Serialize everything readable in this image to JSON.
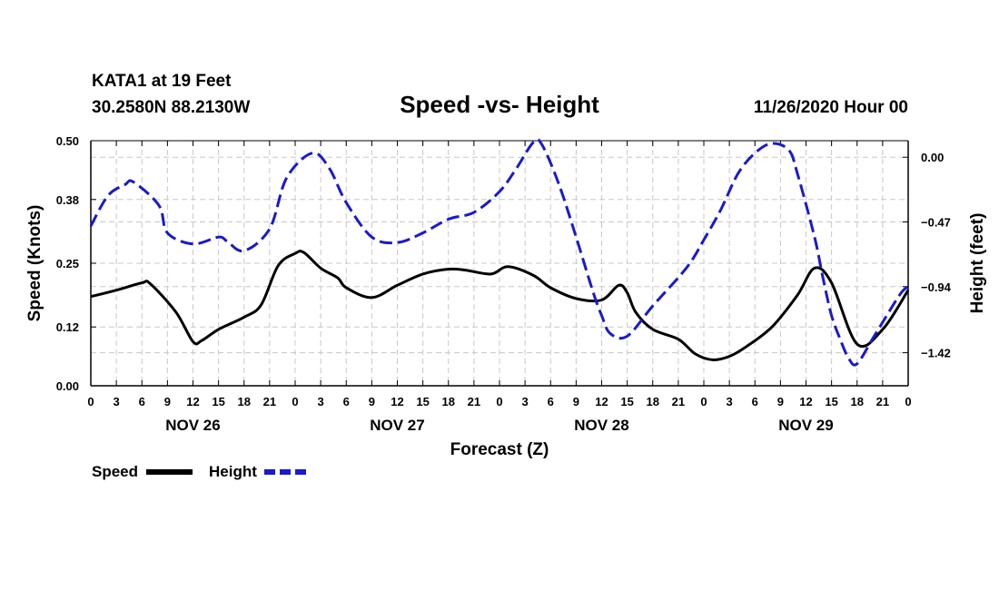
{
  "header": {
    "station": "KATA1 at 19 Feet",
    "coords": "30.2580N 88.2130W",
    "title": "Speed -vs- Height",
    "datetime": "11/26/2020 Hour 00"
  },
  "chart_data": {
    "type": "line",
    "title": "Speed -vs- Height",
    "xlabel": "Forecast (Z)",
    "ylabel": "Speed (Knots)",
    "y2label": "Height (feet)",
    "xlim": [
      0,
      96
    ],
    "ylim": [
      0,
      0.5
    ],
    "y2lim": [
      -1.66,
      0.12
    ],
    "x_tick_labels": [
      "0",
      "3",
      "6",
      "9",
      "12",
      "15",
      "18",
      "21",
      "0",
      "3",
      "6",
      "9",
      "12",
      "15",
      "18",
      "21",
      "0",
      "3",
      "6",
      "9",
      "12",
      "15",
      "18",
      "21",
      "0",
      "3",
      "6",
      "9",
      "12",
      "15",
      "18",
      "21",
      "0"
    ],
    "day_labels": [
      {
        "label": "NOV 26",
        "x": 12
      },
      {
        "label": "NOV 27",
        "x": 36
      },
      {
        "label": "NOV 28",
        "x": 60
      },
      {
        "label": "NOV 29",
        "x": 84
      }
    ],
    "y_ticks": [
      0.0,
      0.12,
      0.25,
      0.38,
      0.5
    ],
    "y_tick_labels": [
      "0.00",
      "0.12",
      "0.25",
      "0.38",
      "0.50"
    ],
    "y2_ticks": [
      -1.42,
      -0.94,
      -0.47,
      0.0
    ],
    "y2_tick_labels": [
      "−1.42",
      "−0.94",
      "−0.47",
      "0.00"
    ],
    "grid": true,
    "legend_position": "bottom-left",
    "series": [
      {
        "name": "Speed",
        "axis": "left",
        "color": "#000000",
        "style": "solid",
        "x": [
          0,
          3,
          6,
          7,
          10,
          12,
          13,
          15,
          18,
          20,
          22,
          24,
          25,
          27,
          29,
          30,
          33,
          36,
          39,
          42,
          44,
          47,
          49,
          52,
          54,
          57,
          60,
          62,
          63,
          64,
          66,
          69,
          71,
          73,
          75,
          77,
          80,
          83,
          85,
          87,
          90,
          93,
          96
        ],
        "values": [
          0.182,
          0.195,
          0.21,
          0.208,
          0.15,
          0.09,
          0.092,
          0.115,
          0.14,
          0.165,
          0.245,
          0.27,
          0.272,
          0.24,
          0.22,
          0.2,
          0.18,
          0.205,
          0.228,
          0.238,
          0.236,
          0.228,
          0.243,
          0.225,
          0.2,
          0.178,
          0.175,
          0.205,
          0.19,
          0.15,
          0.115,
          0.095,
          0.065,
          0.053,
          0.06,
          0.08,
          0.12,
          0.185,
          0.24,
          0.21,
          0.085,
          0.115,
          0.195
        ]
      },
      {
        "name": "Height",
        "axis": "right",
        "color": "#1a1acc",
        "style": "dashed",
        "x": [
          0,
          2,
          4,
          5,
          8,
          9,
          12,
          15,
          16,
          18,
          21,
          23,
          26,
          28,
          30,
          33,
          36,
          39,
          42,
          45,
          48,
          50,
          52,
          53,
          55,
          57,
          59,
          60,
          61,
          63,
          66,
          70,
          72,
          74,
          76,
          78,
          80,
          82,
          83,
          85,
          86,
          87,
          88,
          89,
          90,
          92,
          95,
          96
        ],
        "values": [
          -0.5,
          -0.28,
          -0.2,
          -0.18,
          -0.35,
          -0.55,
          -0.63,
          -0.58,
          -0.61,
          -0.68,
          -0.52,
          -0.15,
          0.03,
          -0.08,
          -0.33,
          -0.58,
          -0.62,
          -0.55,
          -0.45,
          -0.4,
          -0.25,
          -0.08,
          0.11,
          0.09,
          -0.2,
          -0.58,
          -0.98,
          -1.15,
          -1.28,
          -1.3,
          -1.08,
          -0.8,
          -0.6,
          -0.38,
          -0.12,
          0.03,
          0.1,
          0.05,
          -0.12,
          -0.58,
          -0.88,
          -1.15,
          -1.32,
          -1.46,
          -1.5,
          -1.3,
          -1.0,
          -0.94
        ]
      }
    ]
  },
  "legend": {
    "speed_label": "Speed",
    "height_label": "Height"
  }
}
